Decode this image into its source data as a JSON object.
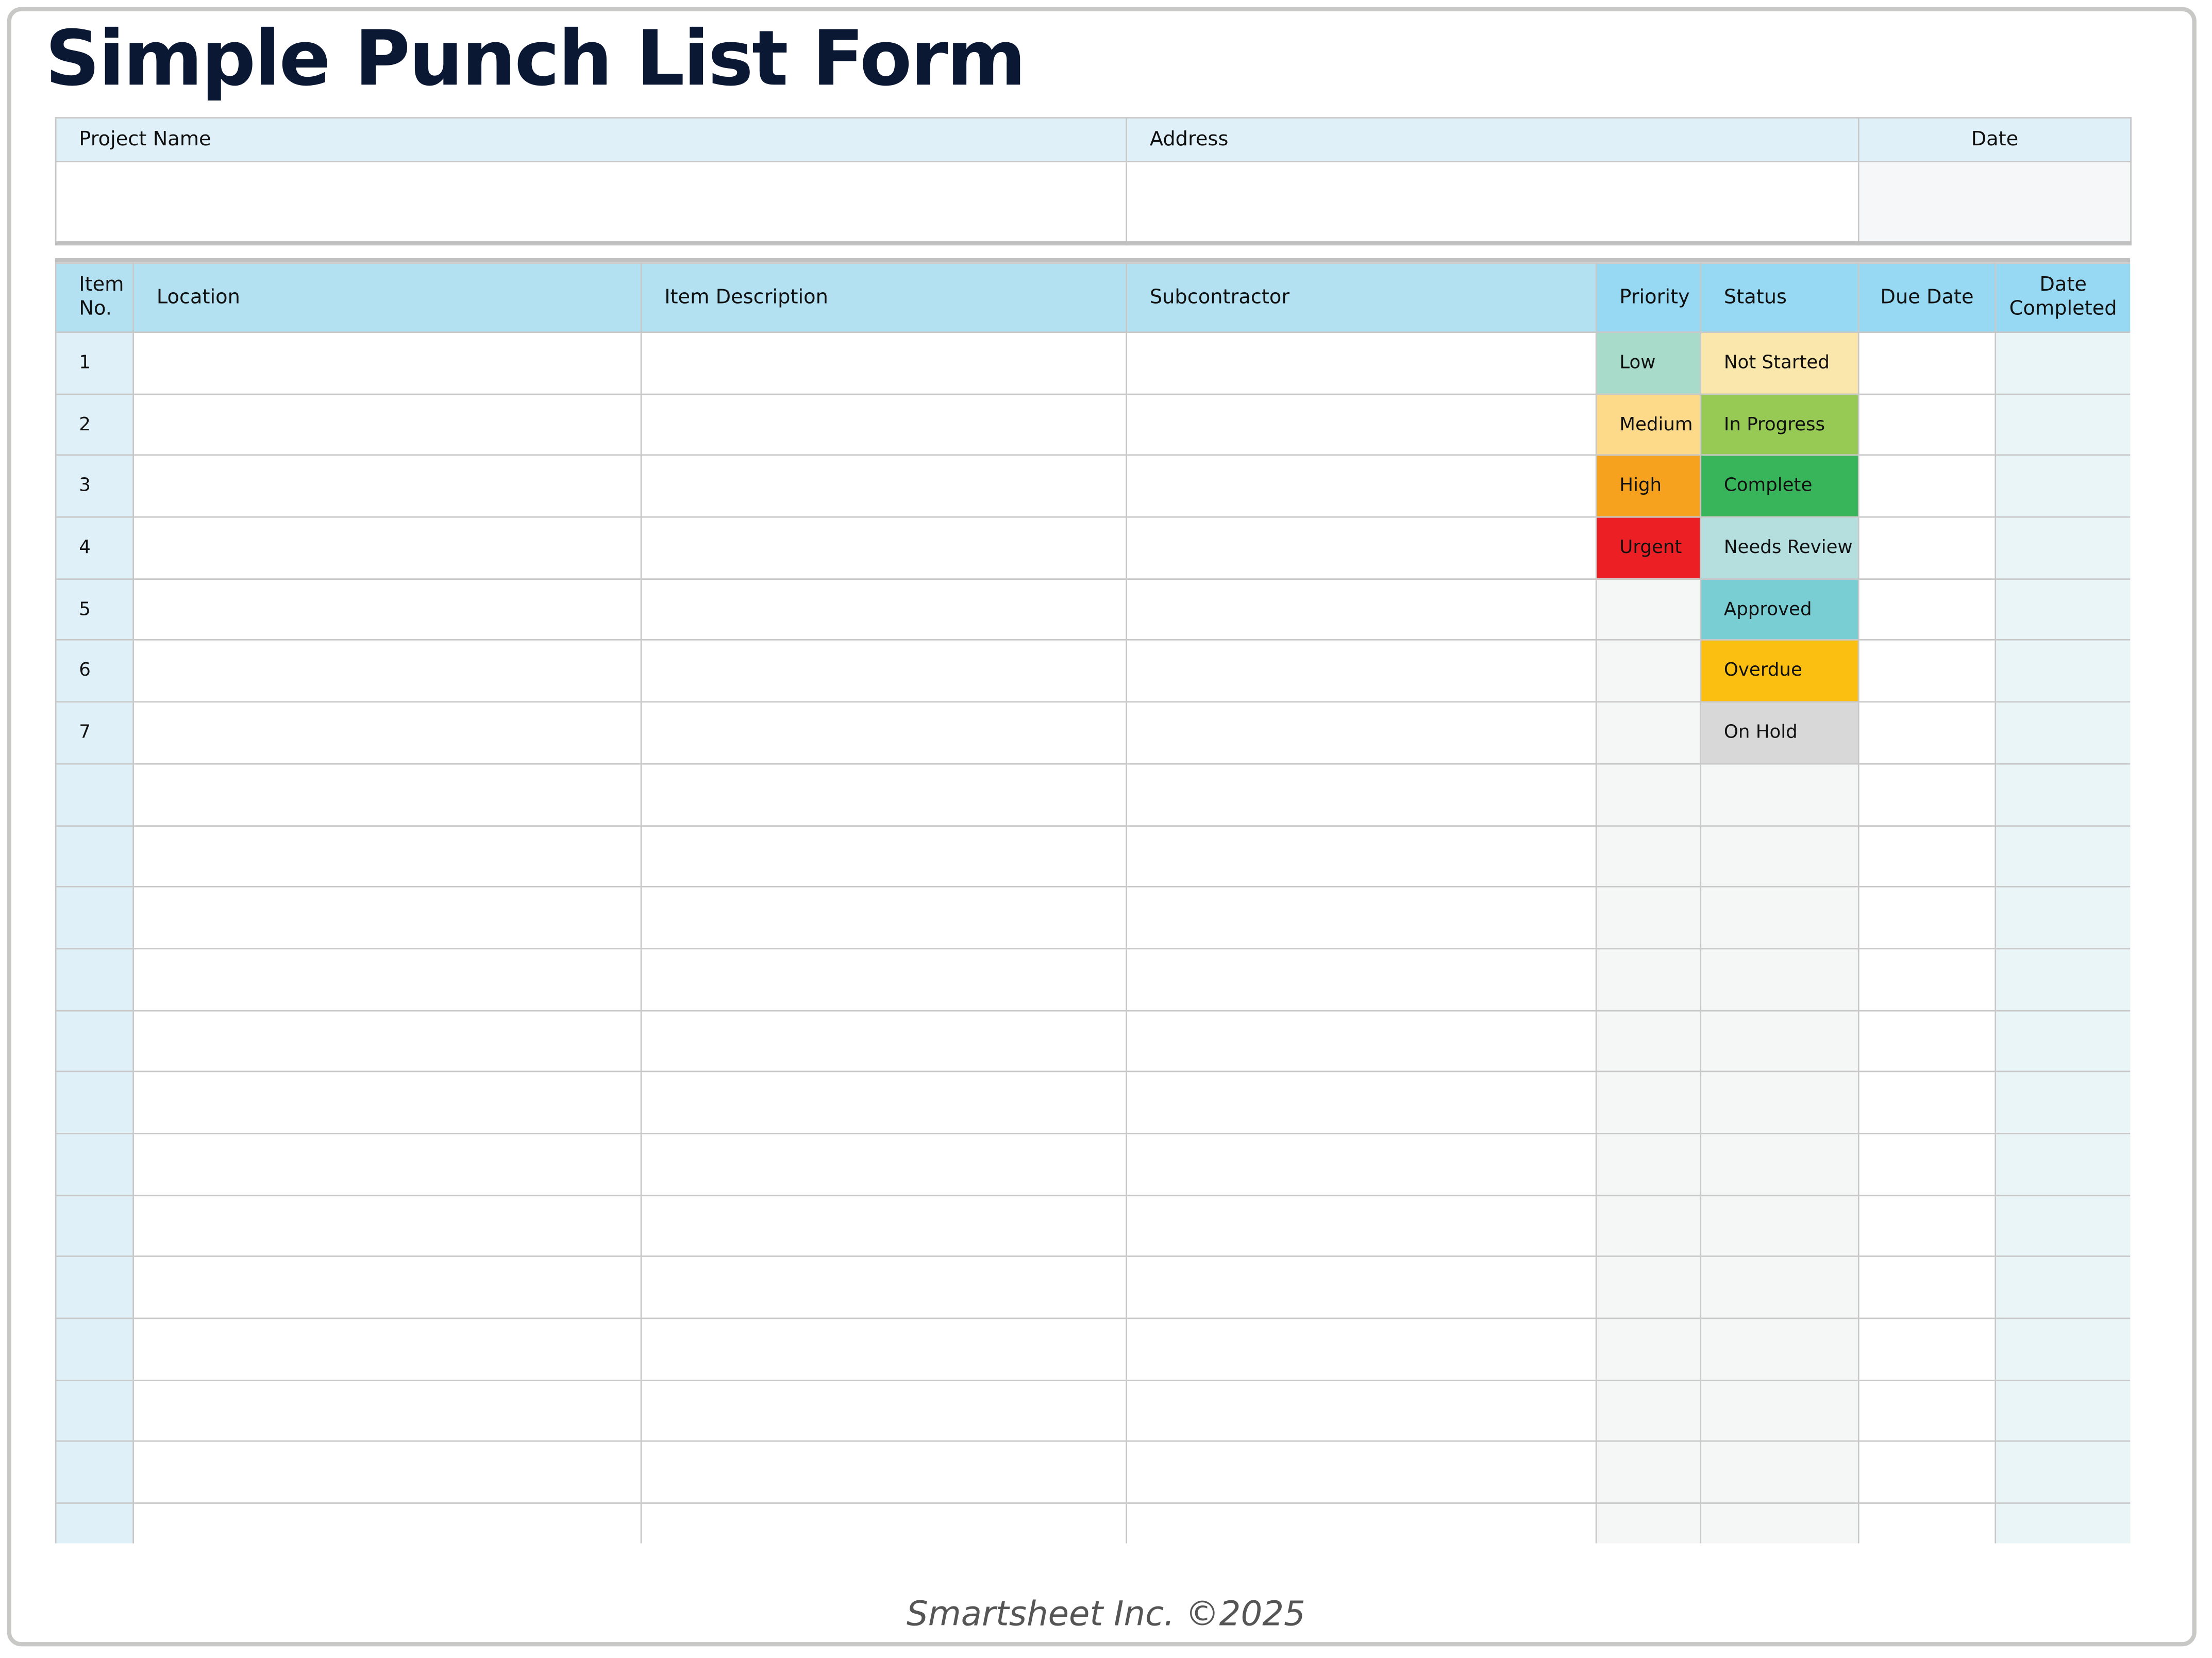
{
  "title": "Simple Punch List Form",
  "info": {
    "project_name_label": "Project Name",
    "address_label": "Address",
    "date_label": "Date",
    "project_name": "",
    "address": "",
    "date": ""
  },
  "table": {
    "headers": {
      "item_no": "Item No.",
      "location": "Location",
      "description": "Item Description",
      "subcontractor": "Subcontractor",
      "priority": "Priority",
      "status": "Status",
      "due_date": "Due Date",
      "date_completed": "Date Completed"
    },
    "rows": [
      {
        "item": "1",
        "priority": "Low",
        "status": "Not Started"
      },
      {
        "item": "2",
        "priority": "Medium",
        "status": "In Progress"
      },
      {
        "item": "3",
        "priority": "High",
        "status": "Complete"
      },
      {
        "item": "4",
        "priority": "Urgent",
        "status": "Needs Review"
      },
      {
        "item": "5",
        "priority": "",
        "status": "Approved"
      },
      {
        "item": "6",
        "priority": "",
        "status": "Overdue"
      },
      {
        "item": "7",
        "priority": "",
        "status": "On Hold"
      }
    ],
    "priority_colors": {
      "Low": "#a8dbc9",
      "Medium": "#fdd98a",
      "High": "#f7a21e",
      "Urgent": "#ec2024"
    },
    "status_colors": {
      "Not Started": "#f9e7ab",
      "In Progress": "#97c955",
      "Complete": "#38b45a",
      "Needs Review": "#b4dfde",
      "Approved": "#79ced4",
      "Overdue": "#fbbf12",
      "On Hold": "#d8d8d8"
    }
  },
  "footer": "Smartsheet Inc. ©2025"
}
